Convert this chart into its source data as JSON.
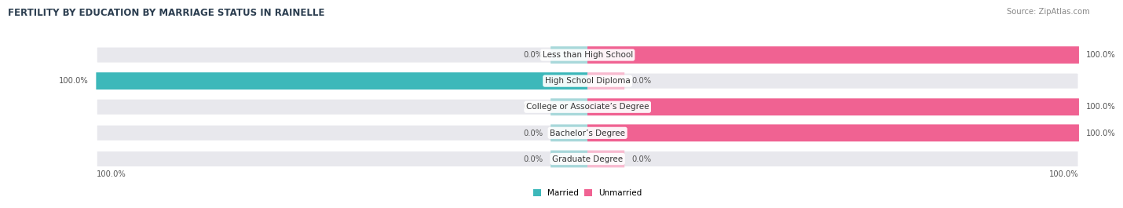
{
  "title": "FERTILITY BY EDUCATION BY MARRIAGE STATUS IN RAINELLE",
  "source": "Source: ZipAtlas.com",
  "categories": [
    "Less than High School",
    "High School Diploma",
    "College or Associate’s Degree",
    "Bachelor’s Degree",
    "Graduate Degree"
  ],
  "married": [
    0.0,
    100.0,
    0.0,
    0.0,
    0.0
  ],
  "unmarried": [
    100.0,
    0.0,
    100.0,
    100.0,
    0.0
  ],
  "married_color": "#3db8ba",
  "unmarried_color": "#f06292",
  "married_stub_color": "#a8d8da",
  "unmarried_stub_color": "#f8bbd0",
  "bg_bar_color": "#e8e8ed",
  "bar_height": 0.62,
  "stub_pct": 7.5,
  "figsize": [
    14.06,
    2.69
  ],
  "dpi": 100,
  "title_fontsize": 8.5,
  "label_fontsize": 7.2,
  "category_fontsize": 7.5,
  "source_fontsize": 7.2,
  "title_color": "#2c3e50",
  "label_color": "#555555",
  "category_color": "#333333",
  "source_color": "#888888"
}
